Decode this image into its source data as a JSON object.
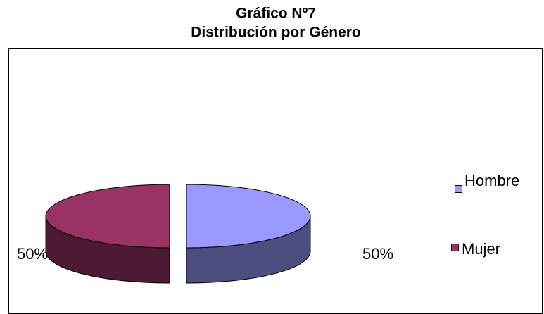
{
  "chart_data": {
    "type": "pie",
    "title": "Gráfico Nº7",
    "subtitle": "Distribución por Género",
    "categories": [
      "Hombre",
      "Mujer"
    ],
    "values": [
      50,
      50
    ],
    "value_labels": [
      "50%",
      "50%"
    ],
    "colors": [
      "#9999ff",
      "#993366"
    ],
    "legend": "right",
    "three_d": true
  }
}
